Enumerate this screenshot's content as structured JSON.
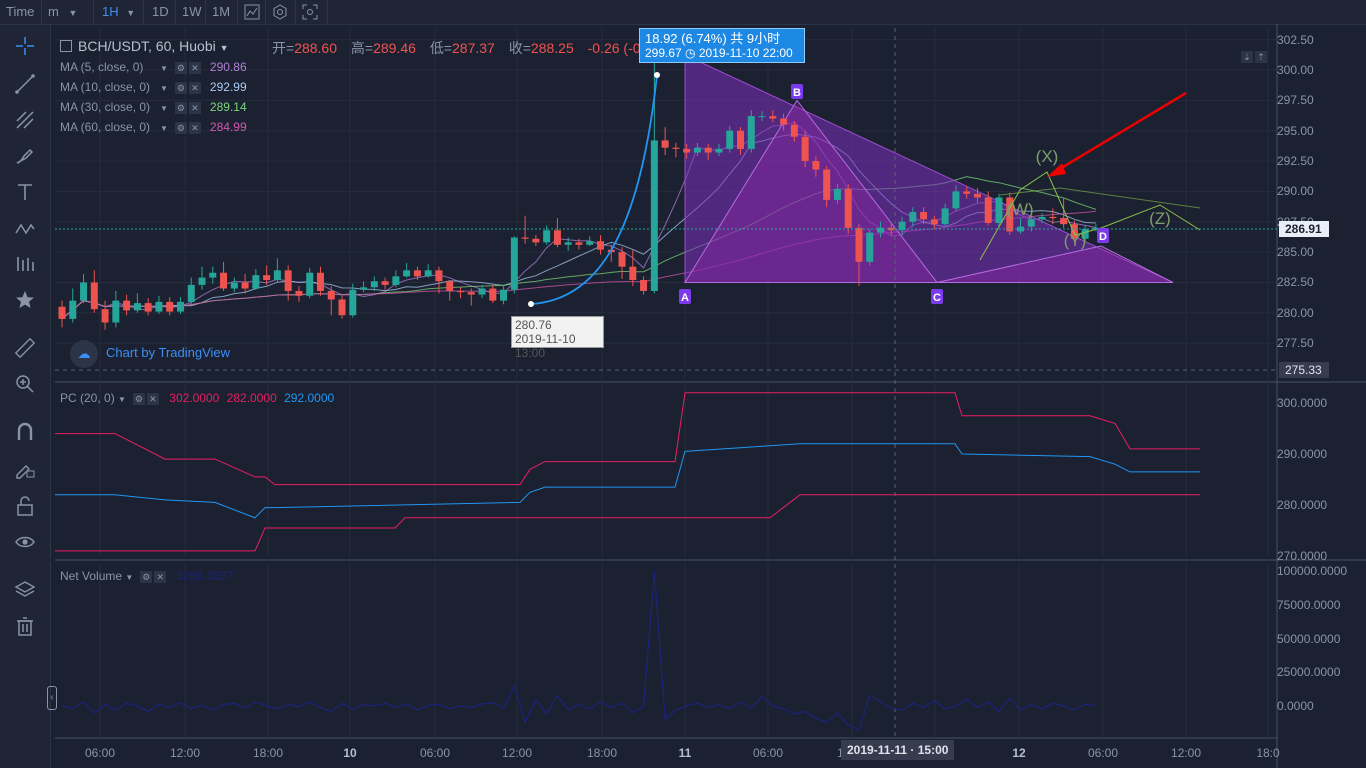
{
  "toolbar": {
    "items": [
      "Time",
      "m",
      "1H",
      "1D",
      "1W",
      "1M"
    ],
    "active": "1H"
  },
  "symbol": {
    "label": "BCH/USDT, 60, Huobi"
  },
  "ohlc": {
    "open_label": "开=",
    "open": "288.60",
    "high_label": "高=",
    "high": "289.46",
    "low_label": "低=",
    "low": "287.37",
    "close_label": "收=",
    "close": "288.25",
    "change": "-0.26 (-0.09%)"
  },
  "moving_averages": [
    {
      "label": "MA (5, close, 0)",
      "value": "290.86",
      "color": "#b07fd6"
    },
    {
      "label": "MA (10, close, 0)",
      "value": "292.99",
      "color": "#a9c8f0"
    },
    {
      "label": "MA (30, close, 0)",
      "value": "289.14",
      "color": "#7bd67b"
    },
    {
      "label": "MA (60, close, 0)",
      "value": "284.99",
      "color": "#d655b0"
    }
  ],
  "measure_tooltip": {
    "line1": "18.92 (6.74%) 共 9小时",
    "line2_price": "299.67",
    "line2_time": "2019-11-10  22:00"
  },
  "start_tooltip": {
    "price": "280.76",
    "time": "2019-11-10 13:00"
  },
  "watermark": "Chart by TradingView",
  "pattern_labels": [
    "A",
    "B",
    "C",
    "D"
  ],
  "wave_labels": [
    "(W)",
    "(X)",
    "(Y)",
    "(Z)"
  ],
  "price_axis": {
    "ticks": [
      "302.50",
      "300.00",
      "297.50",
      "295.00",
      "292.50",
      "290.00",
      "287.50",
      "285.00",
      "282.50",
      "280.00",
      "277.50"
    ],
    "current": "286.91",
    "crosshair": "275.33"
  },
  "pc_indicator": {
    "label": "PC (20, 0)",
    "upper": "302.0000",
    "lower": "282.0000",
    "middle": "292.0000",
    "ticks": [
      "300.0000",
      "290.0000",
      "280.0000",
      "270.0000"
    ]
  },
  "volume_indicator": {
    "label": "Net Volume",
    "value": "3286.3357",
    "ticks": [
      "100000.0000",
      "75000.0000",
      "50000.0000",
      "25000.0000",
      "0.0000"
    ]
  },
  "time_axis": {
    "ticks": [
      "06:00",
      "12:00",
      "18:00",
      "10",
      "06:00",
      "12:00",
      "18:00",
      "11",
      "06:00",
      "12:00",
      "18:00",
      "12",
      "06:00",
      "12:00",
      "18:0"
    ],
    "crosshair": "2019-11-11 · 15:00"
  },
  "colors": {
    "up": "#26a69a",
    "down": "#ef5350",
    "pattern": "#7b2fbe",
    "pc_upper": "#e91e63",
    "pc_mid": "#2196f3",
    "volume": "#1a237e"
  },
  "chart_data": {
    "type": "candlestick",
    "interval": "1H",
    "ylim": [
      275.33,
      303.5
    ],
    "candles": [
      [
        280.5,
        279.5,
        281.0,
        278.8
      ],
      [
        279.5,
        281.0,
        282.0,
        279.2
      ],
      [
        281.0,
        282.5,
        283.2,
        280.8
      ],
      [
        282.5,
        280.3,
        283.5,
        280.0
      ],
      [
        280.3,
        279.2,
        281.0,
        278.6
      ],
      [
        279.2,
        281.0,
        281.8,
        278.8
      ],
      [
        281.0,
        280.2,
        281.5,
        279.8
      ],
      [
        280.2,
        280.8,
        281.6,
        280.0
      ],
      [
        280.8,
        280.1,
        281.2,
        279.8
      ],
      [
        280.1,
        280.9,
        281.4,
        279.9
      ],
      [
        280.9,
        280.1,
        281.3,
        279.8
      ],
      [
        280.1,
        280.9,
        281.3,
        279.9
      ],
      [
        280.9,
        282.3,
        282.9,
        280.7
      ],
      [
        282.3,
        282.9,
        283.8,
        281.9
      ],
      [
        282.9,
        283.3,
        283.8,
        282.4
      ],
      [
        283.3,
        282.0,
        284.2,
        281.8
      ],
      [
        282.0,
        282.5,
        282.9,
        281.7
      ],
      [
        282.5,
        282.0,
        283.2,
        281.6
      ],
      [
        282.0,
        283.1,
        283.6,
        281.9
      ],
      [
        283.1,
        282.7,
        283.9,
        282.3
      ],
      [
        282.7,
        283.5,
        284.5,
        282.5
      ],
      [
        283.5,
        281.8,
        283.9,
        281.0
      ],
      [
        281.8,
        281.4,
        282.2,
        280.9
      ],
      [
        281.4,
        283.3,
        283.7,
        281.2
      ],
      [
        283.3,
        281.8,
        283.8,
        281.4
      ],
      [
        281.8,
        281.1,
        282.2,
        279.8
      ],
      [
        281.1,
        279.8,
        281.4,
        279.5
      ],
      [
        279.8,
        281.9,
        282.4,
        279.6
      ],
      [
        281.9,
        282.1,
        282.6,
        281.7
      ],
      [
        282.1,
        282.6,
        283.0,
        281.8
      ],
      [
        282.6,
        282.3,
        282.9,
        281.9
      ],
      [
        282.3,
        283.0,
        283.5,
        282.1
      ],
      [
        283.0,
        283.5,
        284.1,
        282.9
      ],
      [
        283.5,
        283.0,
        283.8,
        282.7
      ],
      [
        283.0,
        283.5,
        284.0,
        282.9
      ],
      [
        283.5,
        282.6,
        283.8,
        281.6
      ],
      [
        282.6,
        281.8,
        282.7,
        281.0
      ],
      [
        281.8,
        281.7,
        282.1,
        281.2
      ],
      [
        281.7,
        281.5,
        282.0,
        280.6
      ],
      [
        281.5,
        282.0,
        282.3,
        281.2
      ],
      [
        282.0,
        281.0,
        282.3,
        280.8
      ],
      [
        281.0,
        281.9,
        282.3,
        280.7
      ],
      [
        281.9,
        286.2,
        286.3,
        281.6
      ],
      [
        286.2,
        286.1,
        288.0,
        285.7
      ],
      [
        286.1,
        285.8,
        286.4,
        285.5
      ],
      [
        285.8,
        286.8,
        287.2,
        285.6
      ],
      [
        286.8,
        285.6,
        287.8,
        285.4
      ],
      [
        285.6,
        285.8,
        286.2,
        285.1
      ],
      [
        285.8,
        285.6,
        286.1,
        285.2
      ],
      [
        285.6,
        285.9,
        286.3,
        285.5
      ],
      [
        285.9,
        285.2,
        286.4,
        284.8
      ],
      [
        285.2,
        285.0,
        285.6,
        284.2
      ],
      [
        285.0,
        283.8,
        285.4,
        282.8
      ],
      [
        283.8,
        282.7,
        285.2,
        282.2
      ],
      [
        282.7,
        281.8,
        283.0,
        281.5
      ],
      [
        281.8,
        294.2,
        302.0,
        281.6
      ],
      [
        294.2,
        293.6,
        295.3,
        293.0
      ],
      [
        293.6,
        293.5,
        294.0,
        292.8
      ],
      [
        293.5,
        293.2,
        293.9,
        292.7
      ],
      [
        293.2,
        293.6,
        294.0,
        292.9
      ],
      [
        293.6,
        293.2,
        293.9,
        292.6
      ],
      [
        293.2,
        293.5,
        293.9,
        292.9
      ],
      [
        293.5,
        295.0,
        295.4,
        293.2
      ],
      [
        295.0,
        293.5,
        295.3,
        293.0
      ],
      [
        293.5,
        296.2,
        296.7,
        293.2
      ],
      [
        296.2,
        296.2,
        296.6,
        295.8
      ],
      [
        296.2,
        296.0,
        296.7,
        295.7
      ],
      [
        296.0,
        295.5,
        296.4,
        295.0
      ],
      [
        295.5,
        294.5,
        295.8,
        294.1
      ],
      [
        294.5,
        292.5,
        295.0,
        292.0
      ],
      [
        292.5,
        291.8,
        292.9,
        291.2
      ],
      [
        291.8,
        289.3,
        292.1,
        288.7
      ],
      [
        289.3,
        290.2,
        290.6,
        289.0
      ],
      [
        290.2,
        287.0,
        290.6,
        286.5
      ],
      [
        287.0,
        284.2,
        287.3,
        282.2
      ],
      [
        284.2,
        286.6,
        286.9,
        283.9
      ],
      [
        286.6,
        287.0,
        287.5,
        286.2
      ],
      [
        287.0,
        286.8,
        287.3,
        286.4
      ],
      [
        286.8,
        287.5,
        287.9,
        286.4
      ],
      [
        287.5,
        288.3,
        288.7,
        287.1
      ],
      [
        288.3,
        287.7,
        288.7,
        287.3
      ],
      [
        287.7,
        287.3,
        288.0,
        286.9
      ],
      [
        287.3,
        288.6,
        289.0,
        287.1
      ],
      [
        288.6,
        290.0,
        290.5,
        288.4
      ],
      [
        290.0,
        289.8,
        290.4,
        289.4
      ],
      [
        289.8,
        289.5,
        290.3,
        289.1
      ],
      [
        289.5,
        287.4,
        290.0,
        287.2
      ],
      [
        287.4,
        289.5,
        289.8,
        287.1
      ],
      [
        289.5,
        286.7,
        289.9,
        286.4
      ],
      [
        286.7,
        287.1,
        287.8,
        286.5
      ],
      [
        287.1,
        287.7,
        288.0,
        286.7
      ],
      [
        287.7,
        287.9,
        288.2,
        287.4
      ],
      [
        287.9,
        287.8,
        288.6,
        287.3
      ],
      [
        287.8,
        287.3,
        289.5,
        287.0
      ],
      [
        287.3,
        286.1,
        287.6,
        285.8
      ],
      [
        286.1,
        286.9,
        287.2,
        285.9
      ],
      [
        286.9,
        287.0,
        287.3,
        286.7
      ]
    ]
  }
}
